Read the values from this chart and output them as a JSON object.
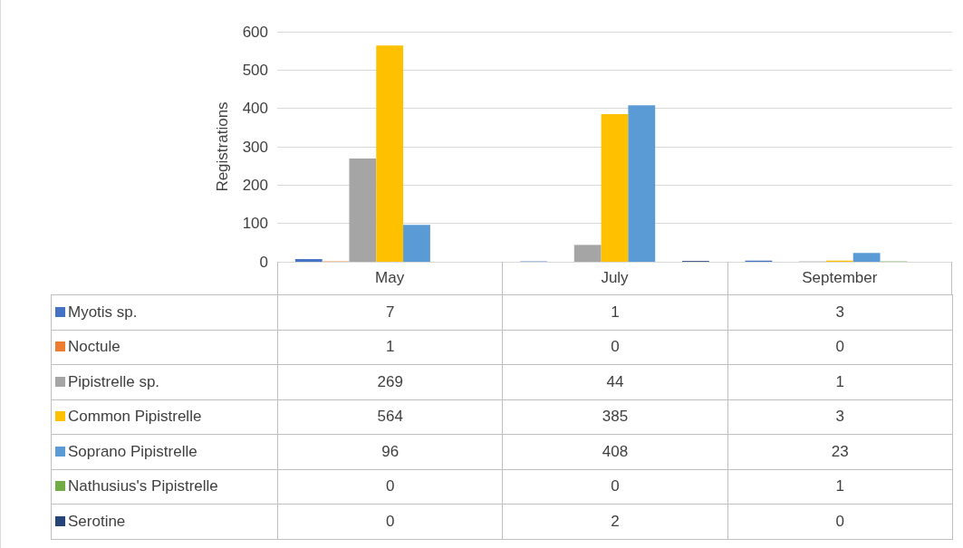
{
  "chart_data": {
    "type": "bar",
    "ylabel": "Registrations",
    "categories": [
      "May",
      "July",
      "September"
    ],
    "series": [
      {
        "name": "Myotis sp.",
        "color": "#4472c4",
        "values": [
          7,
          1,
          3
        ]
      },
      {
        "name": "Noctule",
        "color": "#ed7d31",
        "values": [
          1,
          0,
          0
        ]
      },
      {
        "name": "Pipistrelle sp.",
        "color": "#a5a5a5",
        "values": [
          269,
          44,
          1
        ]
      },
      {
        "name": "Common Pipistrelle",
        "color": "#ffc000",
        "values": [
          564,
          385,
          3
        ]
      },
      {
        "name": "Soprano Pipistrelle",
        "color": "#5b9bd5",
        "values": [
          96,
          408,
          23
        ]
      },
      {
        "name": "Nathusius's Pipistrelle",
        "color": "#70ad47",
        "values": [
          0,
          0,
          1
        ]
      },
      {
        "name": "Serotine",
        "color": "#264478",
        "values": [
          0,
          2,
          0
        ]
      }
    ],
    "ylim": [
      0,
      600
    ],
    "yticks": [
      0,
      100,
      200,
      300,
      400,
      500,
      600
    ],
    "grid": "y",
    "legend": "bottom",
    "data_labels": true
  }
}
